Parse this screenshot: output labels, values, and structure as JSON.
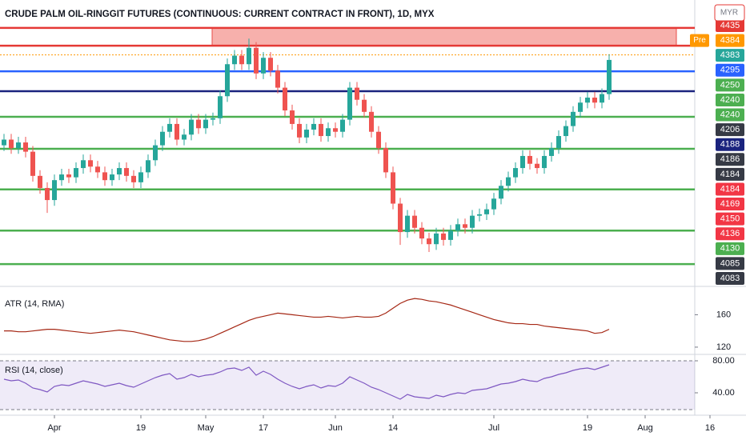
{
  "chart_data": {
    "type": "candlestick",
    "title": "CRUDE PALM OIL-RINGGIT FUTURES (CONTINUOUS: CURRENT CONTRACT IN FRONT), 1D, MYX",
    "currency": "MYR",
    "pre_label": "Pre",
    "up_color": "#26a69a",
    "down_color": "#ef5350",
    "categories": [
      null,
      null,
      null,
      null,
      null,
      null,
      null,
      "Apr",
      null,
      null,
      null,
      null,
      null,
      null,
      null,
      null,
      null,
      null,
      null,
      "19",
      null,
      null,
      null,
      null,
      null,
      null,
      null,
      null,
      "May",
      null,
      null,
      null,
      null,
      null,
      null,
      null,
      "17",
      null,
      null,
      null,
      null,
      null,
      null,
      null,
      null,
      null,
      "Jun",
      null,
      null,
      null,
      null,
      null,
      null,
      null,
      "14",
      null,
      null,
      null,
      null,
      null,
      null,
      null,
      null,
      null,
      null,
      null,
      null,
      null,
      "Jul",
      null,
      null,
      null,
      null,
      null,
      null,
      null,
      null,
      null,
      null,
      null,
      null,
      "19",
      null,
      null,
      null
    ],
    "future_categories": [
      null,
      null,
      null,
      null,
      "Aug",
      null,
      null,
      null,
      null,
      null,
      null,
      null,
      null,
      "16"
    ],
    "open": [
      4270,
      4278,
      4266,
      4274,
      4261,
      4227,
      4210,
      4193,
      4221,
      4229,
      4225,
      4238,
      4249,
      4240,
      4232,
      4221,
      4229,
      4238,
      4227,
      4218,
      4232,
      4249,
      4270,
      4289,
      4300,
      4278,
      4285,
      4306,
      4294,
      4306,
      4308,
      4339,
      4384,
      4396,
      4384,
      4407,
      4371,
      4393,
      4375,
      4351,
      4319,
      4300,
      4281,
      4292,
      4300,
      4283,
      4294,
      4289,
      4306,
      4351,
      4334,
      4317,
      4289,
      4266,
      4232,
      4188,
      4148,
      4171,
      4154,
      4139,
      4131,
      4146,
      4137,
      4150,
      4159,
      4154,
      4171,
      4173,
      4180,
      4195,
      4213,
      4225,
      4238,
      4255,
      4244,
      4238,
      4255,
      4266,
      4283,
      4297,
      4317,
      4330,
      4337,
      4330,
      4342
    ],
    "high": [
      4286,
      4286,
      4282,
      4282,
      4269,
      4235,
      4218,
      4229,
      4237,
      4237,
      4246,
      4257,
      4257,
      4248,
      4240,
      4237,
      4246,
      4246,
      4235,
      4240,
      4257,
      4278,
      4297,
      4308,
      4308,
      4293,
      4314,
      4314,
      4314,
      4316,
      4347,
      4392,
      4404,
      4404,
      4420,
      4415,
      4401,
      4401,
      4383,
      4359,
      4327,
      4308,
      4300,
      4308,
      4308,
      4302,
      4302,
      4314,
      4359,
      4359,
      4342,
      4325,
      4297,
      4274,
      4240,
      4196,
      4179,
      4179,
      4162,
      4147,
      4154,
      4154,
      4158,
      4167,
      4167,
      4179,
      4181,
      4188,
      4203,
      4221,
      4233,
      4246,
      4263,
      4263,
      4252,
      4263,
      4274,
      4291,
      4305,
      4325,
      4338,
      4345,
      4345,
      4350,
      4398
    ],
    "low": [
      4262,
      4258,
      4258,
      4253,
      4219,
      4202,
      4175,
      4185,
      4213,
      4217,
      4217,
      4230,
      4232,
      4224,
      4213,
      4213,
      4221,
      4219,
      4210,
      4210,
      4224,
      4241,
      4262,
      4281,
      4270,
      4270,
      4277,
      4286,
      4286,
      4298,
      4300,
      4331,
      4376,
      4376,
      4376,
      4363,
      4363,
      4367,
      4343,
      4311,
      4292,
      4273,
      4273,
      4284,
      4275,
      4275,
      4281,
      4281,
      4298,
      4326,
      4309,
      4281,
      4258,
      4224,
      4180,
      4130,
      4140,
      4146,
      4131,
      4120,
      4123,
      4129,
      4129,
      4142,
      4146,
      4146,
      4163,
      4165,
      4172,
      4187,
      4205,
      4217,
      4230,
      4236,
      4230,
      4230,
      4247,
      4258,
      4275,
      4289,
      4309,
      4322,
      4322,
      4322,
      4334
    ],
    "close": [
      4278,
      4266,
      4274,
      4261,
      4227,
      4210,
      4193,
      4221,
      4229,
      4225,
      4238,
      4249,
      4240,
      4232,
      4221,
      4229,
      4238,
      4227,
      4218,
      4232,
      4249,
      4270,
      4289,
      4300,
      4278,
      4285,
      4306,
      4294,
      4306,
      4308,
      4339,
      4384,
      4396,
      4384,
      4407,
      4371,
      4393,
      4375,
      4351,
      4319,
      4300,
      4281,
      4292,
      4300,
      4283,
      4294,
      4289,
      4306,
      4351,
      4334,
      4317,
      4289,
      4266,
      4232,
      4188,
      4148,
      4171,
      4154,
      4139,
      4131,
      4146,
      4137,
      4150,
      4159,
      4154,
      4171,
      4173,
      4180,
      4195,
      4213,
      4225,
      4238,
      4255,
      4244,
      4238,
      4255,
      4266,
      4283,
      4297,
      4317,
      4330,
      4337,
      4330,
      4342,
      4390
    ],
    "ylim": [
      4075,
      4463
    ],
    "zone": {
      "from": 4435,
      "to": 4410,
      "color": "#f7a8a4"
    },
    "levels": [
      {
        "value": 4435,
        "color": "#e53935"
      },
      {
        "value": 4410,
        "color": "#e53935"
      },
      {
        "value": 4397,
        "color": "#ff9800",
        "style": "dotted"
      },
      {
        "value": 4374,
        "color": "#2962ff"
      },
      {
        "value": 4346,
        "color": "#1a237e"
      },
      {
        "value": 4310,
        "color": "#4caf50"
      },
      {
        "value": 4265,
        "color": "#4caf50"
      },
      {
        "value": 4208,
        "color": "#4caf50"
      },
      {
        "value": 4150,
        "color": "#4caf50"
      },
      {
        "value": 4103,
        "color": "#4caf50"
      }
    ],
    "price_labels": [
      {
        "value": 4435,
        "color": "#e53935"
      },
      {
        "value": 4384,
        "color": "#ff9800"
      },
      {
        "value": 4383,
        "color": "#26a69a"
      },
      {
        "value": 4295,
        "color": "#2962ff"
      },
      {
        "value": 4250,
        "color": "#4caf50"
      },
      {
        "value": 4240,
        "color": "#4caf50"
      },
      {
        "value": 4240,
        "color": "#4caf50"
      },
      {
        "value": 4206,
        "color": "#363a45"
      },
      {
        "value": 4188,
        "color": "#1a237e"
      },
      {
        "value": 4186,
        "color": "#363a45"
      },
      {
        "value": 4184,
        "color": "#363a45"
      },
      {
        "value": 4184,
        "color": "#f23645"
      },
      {
        "value": 4169,
        "color": "#f23645"
      },
      {
        "value": 4150,
        "color": "#f23645"
      },
      {
        "value": 4136,
        "color": "#f23645"
      },
      {
        "value": 4130,
        "color": "#4caf50"
      },
      {
        "value": 4085,
        "color": "#363a45"
      },
      {
        "value": 4083,
        "color": "#363a45"
      }
    ],
    "panes": [
      {
        "title": "ATR (14, RMA)",
        "type": "line",
        "color": "#a52714",
        "ylim": [
          114,
          191
        ],
        "yticks": [
          160,
          120
        ],
        "values": [
          140,
          140,
          139,
          139,
          140,
          141,
          142,
          142,
          141,
          140,
          139,
          138,
          137,
          138,
          139,
          140,
          141,
          140,
          139,
          137,
          135,
          133,
          131,
          129,
          128,
          127,
          127,
          128,
          130,
          133,
          137,
          141,
          145,
          149,
          153,
          156,
          158,
          160,
          162,
          161,
          160,
          159,
          158,
          157,
          157,
          158,
          157,
          156,
          157,
          158,
          157,
          157,
          158,
          162,
          168,
          174,
          178,
          180,
          179,
          177,
          176,
          174,
          172,
          169,
          166,
          163,
          160,
          157,
          154,
          152,
          150,
          149,
          149,
          148,
          148,
          146,
          145,
          144,
          143,
          142,
          141,
          140,
          137,
          138,
          142
        ]
      },
      {
        "title": "RSI (14, close)",
        "type": "line",
        "color": "#7e57c2",
        "ylim": [
          16,
          86
        ],
        "yticks": [
          {
            "value": 80,
            "label": "80.00"
          },
          {
            "value": 40,
            "label": "40.00"
          }
        ],
        "band": [
          19,
          80
        ],
        "band_color": "rgba(126,87,194,0.12)",
        "values": [
          57,
          55,
          56,
          52,
          46,
          44,
          41,
          48,
          50,
          49,
          52,
          55,
          53,
          51,
          48,
          50,
          52,
          49,
          47,
          51,
          55,
          59,
          62,
          64,
          57,
          59,
          63,
          60,
          62,
          63,
          66,
          70,
          71,
          68,
          72,
          62,
          67,
          63,
          57,
          52,
          48,
          45,
          48,
          50,
          46,
          49,
          48,
          52,
          60,
          56,
          52,
          47,
          44,
          40,
          36,
          32,
          38,
          35,
          34,
          33,
          37,
          35,
          38,
          40,
          39,
          43,
          44,
          45,
          48,
          51,
          52,
          54,
          57,
          55,
          54,
          58,
          60,
          63,
          65,
          68,
          70,
          71,
          69,
          72,
          75
        ]
      }
    ]
  }
}
